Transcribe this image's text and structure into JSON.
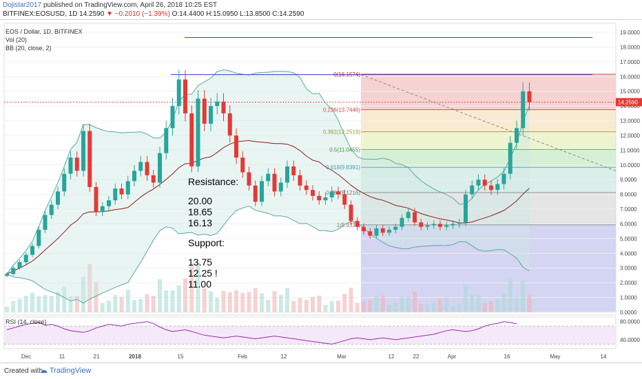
{
  "header": {
    "author": "Dojistar2017",
    "published": "published on TradingView.com, April 26, 2018 10:25 EST",
    "symbol": "BITFINEX:EOSUSD, 1D",
    "last": "14.2590",
    "change": "▼ −0.2010 (−1.39%)",
    "ohlc": "O:14.4400 H:15.0950 L:13.8500 C:14.2590"
  },
  "legend": {
    "title": "EOS / Dollar, 1D, BITFINEX",
    "vol": "Vol (20)",
    "bb": "BB (20, close, 2)",
    "rsi": "RSI (14, close)"
  },
  "notes": {
    "resistance_title": "Resistance:",
    "resistance": [
      "20.00",
      "18.65",
      "16.13"
    ],
    "support_title": "Support:",
    "support": [
      "13.75",
      "12.25 !",
      "11.00"
    ]
  },
  "footer": {
    "created": "Created with",
    "brand": "TradingView"
  },
  "colors": {
    "up": "#26a69a",
    "down": "#e53935",
    "bb_band": "#5aa89e",
    "bb_mid": "#8b1a1a",
    "hline": "#3b3be0",
    "rsi": "#9c27b0"
  },
  "chart_data": {
    "type": "candlestick",
    "price_axis": {
      "min": 0,
      "max": 19,
      "step": 1
    },
    "price_ticks": [
      "19.0000",
      "18.0000",
      "17.0000",
      "16.0000",
      "15.0000",
      "14.0000",
      "13.0000",
      "12.0000",
      "11.0000",
      "10.0000",
      "9.0000",
      "8.0000",
      "7.0000",
      "6.0000",
      "5.0000",
      "4.0000",
      "3.0000",
      "2.0000",
      "1.0000",
      "0.0000"
    ],
    "last_price_label": "14.2590",
    "x_labels": [
      "Dec",
      "11",
      "21",
      "2018",
      "15",
      "Feb",
      "12",
      "Mar",
      "12",
      "22",
      "Apr",
      "16",
      "May",
      "14"
    ],
    "fib_levels": [
      {
        "label": "0(16.1574)",
        "value": 16.1574
      },
      {
        "label": "0.236(13.7446)",
        "value": 13.7446
      },
      {
        "label": "0.382(12.2519)",
        "value": 12.2519
      },
      {
        "label": "0.5(11.0455)",
        "value": 11.0455
      },
      {
        "label": "0.618(9.8391)",
        "value": 9.8391
      },
      {
        "label": "0.786(8.1216)",
        "value": 8.1216
      },
      {
        "label": "1(5.9336)",
        "value": 5.9336
      }
    ],
    "horizontal_lines": [
      18.65,
      16.13
    ],
    "trendline": [
      [
        16.13,
        0
      ],
      [
        9.6,
        0
      ]
    ],
    "rsi_ticks": [
      "80.0000",
      "40.0000"
    ],
    "rsi_levels": [
      70,
      30
    ],
    "close_series": [
      2.6,
      3.0,
      3.4,
      3.9,
      4.5,
      5.6,
      6.6,
      7.3,
      8.2,
      9.4,
      10.5,
      9.6,
      12.3,
      8.5,
      6.8,
      7.2,
      7.6,
      8.4,
      8.0,
      8.9,
      9.6,
      10.2,
      9.3,
      8.8,
      10.8,
      12.5,
      14.0,
      15.8,
      13.5,
      9.9,
      14.5,
      12.8,
      14.0,
      14.3,
      13.5,
      12.0,
      10.5,
      9.5,
      8.6,
      7.5,
      8.9,
      9.4,
      8.2,
      8.8,
      9.9,
      9.3,
      8.6,
      8.3,
      7.9,
      7.6,
      7.8,
      8.2,
      8.0,
      7.3,
      6.2,
      5.8,
      5.5,
      5.2,
      5.7,
      5.4,
      5.6,
      5.8,
      6.4,
      6.8,
      6.1,
      5.8,
      5.9,
      6.0,
      5.8,
      5.9,
      6.0,
      6.1,
      8.0,
      8.6,
      9.0,
      8.6,
      8.3,
      8.7,
      9.4,
      11.5,
      12.5,
      15.0,
      14.26
    ],
    "rsi_series": [
      62,
      66,
      70,
      74,
      76,
      78,
      72,
      74,
      70,
      64,
      60,
      58,
      56,
      60,
      66,
      70,
      74,
      72,
      70,
      74,
      76,
      78,
      80,
      76,
      68,
      62,
      58,
      60,
      62,
      58,
      54,
      50,
      48,
      46,
      44,
      46,
      48,
      46,
      44,
      42,
      44,
      46,
      48,
      46,
      44,
      42,
      40,
      38,
      36,
      34,
      32,
      30,
      34,
      38,
      42,
      44,
      42,
      40,
      42,
      44,
      42,
      40,
      42,
      44,
      46,
      48,
      50,
      52,
      56,
      60,
      62,
      60,
      58,
      60,
      64,
      70,
      74,
      76,
      80,
      78,
      75
    ]
  }
}
